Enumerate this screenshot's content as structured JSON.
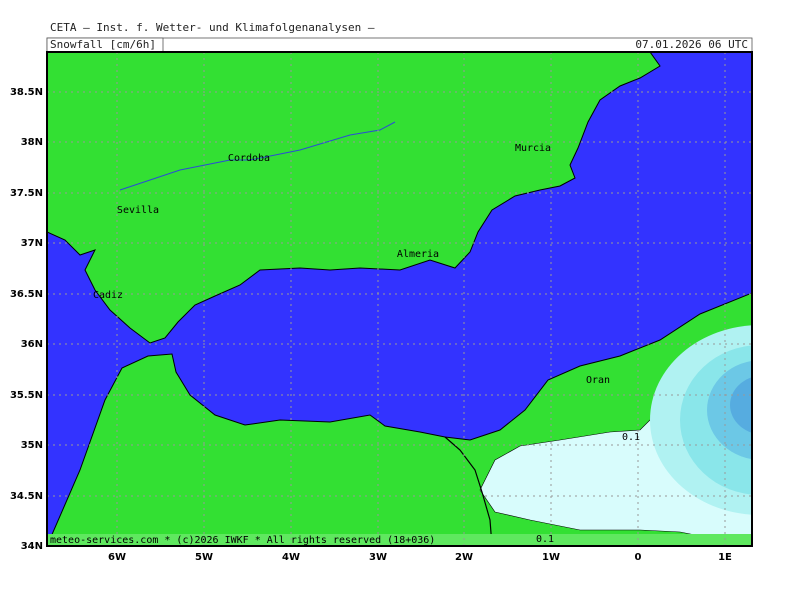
{
  "header": {
    "title": "CETA – Inst. f. Wetter- und Klimafolgenanalysen –",
    "product": "Snowfall [cm/6h]",
    "valid": "07.01.2026 06 UTC"
  },
  "axes": {
    "x_ticks": [
      "6W",
      "5W",
      "4W",
      "3W",
      "2W",
      "1W",
      "0",
      "1E"
    ],
    "y_ticks": [
      "38.5N",
      "38N",
      "37.5N",
      "37N",
      "36.5N",
      "36N",
      "35.5N",
      "35N",
      "34.5N",
      "34N"
    ]
  },
  "cities": [
    "Cordoba",
    "Sevilla",
    "Murcia",
    "Almeria",
    "Cadiz",
    "Oran"
  ],
  "contour_labels": [
    "0.1",
    "0.1"
  ],
  "footer": "meteo-services.com * (c)2026 IWKF * All rights reserved (18+036)"
}
